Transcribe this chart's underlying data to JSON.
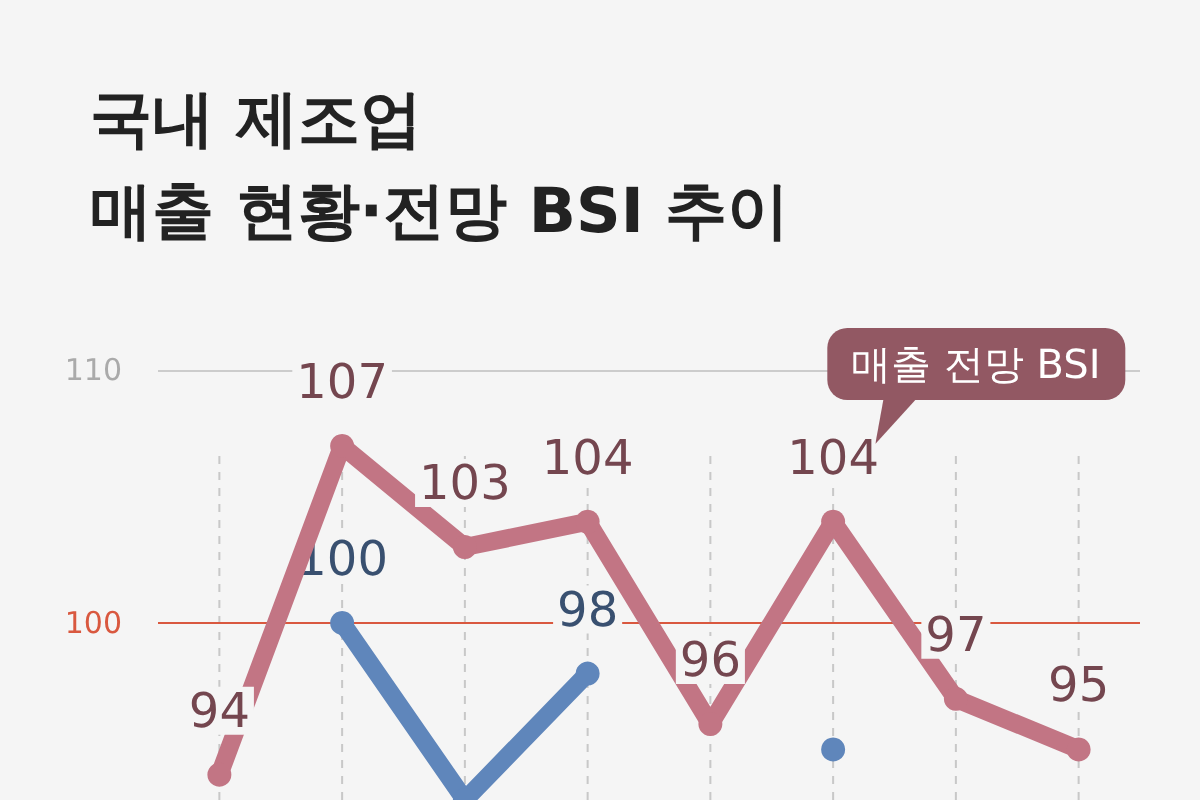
{
  "chart_data": {
    "type": "line",
    "title": "국내 제조업\n매출 현황·전망 BSI 추이",
    "categories": [
      null,
      null,
      null,
      null,
      null,
      null,
      null,
      null
    ],
    "series": [
      {
        "name": "매출 전망 BSI",
        "color": "#c27584",
        "values": [
          94,
          107,
          103,
          104,
          96,
          104,
          97,
          95
        ],
        "value_labels": [
          "94",
          "107",
          "103",
          "104",
          "96",
          "104",
          "97",
          "95"
        ]
      },
      {
        "color": "#5f86bb",
        "values": [
          null,
          100,
          93,
          98,
          null,
          95,
          null,
          null
        ],
        "value_labels": [
          null,
          "100",
          null,
          "98",
          null,
          null,
          null,
          null
        ]
      }
    ],
    "ylim": [
      93,
      110
    ],
    "yticks": [
      100,
      110
    ],
    "grid": true,
    "tick_labels": "y",
    "marker": "circle",
    "line_style": "solid",
    "ref_lines": [
      {
        "axis": "y",
        "value": 100,
        "color": "#d9583f"
      }
    ]
  }
}
